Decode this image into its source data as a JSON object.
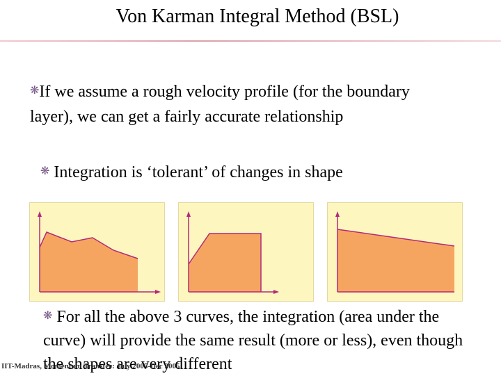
{
  "slide": {
    "title": "Von Karman Integral  Method (BSL)",
    "bullets": [
      {
        "icon": "snowflake-icon",
        "text": "If we assume a rough velocity profile (for the boundary layer), we can get a fairly accurate relationship"
      },
      {
        "icon": "snowflake-icon",
        "text": " Integration is ‘tolerant’ of changes in shape"
      },
      {
        "icon": "snowflake-icon",
        "text": " For all the above 3 curves, the integration (area under the curve) will provide the same result (more or less), even though the shapes are very different"
      }
    ],
    "footer": "IIT-Madras, Momentum Transfer: July 2005-Dec 2005"
  },
  "colors": {
    "panel_fill": "#fdf6bf",
    "curve_fill": "#f6a561",
    "curve_stroke": "#b22a7a",
    "axis": "#b22a7a"
  },
  "figures": [
    {
      "label": "",
      "shape": "wavy-profile"
    },
    {
      "label": "",
      "shape": "ramp-then-flat-profile"
    },
    {
      "label": "",
      "shape": "linearly-decreasing-profile"
    }
  ]
}
